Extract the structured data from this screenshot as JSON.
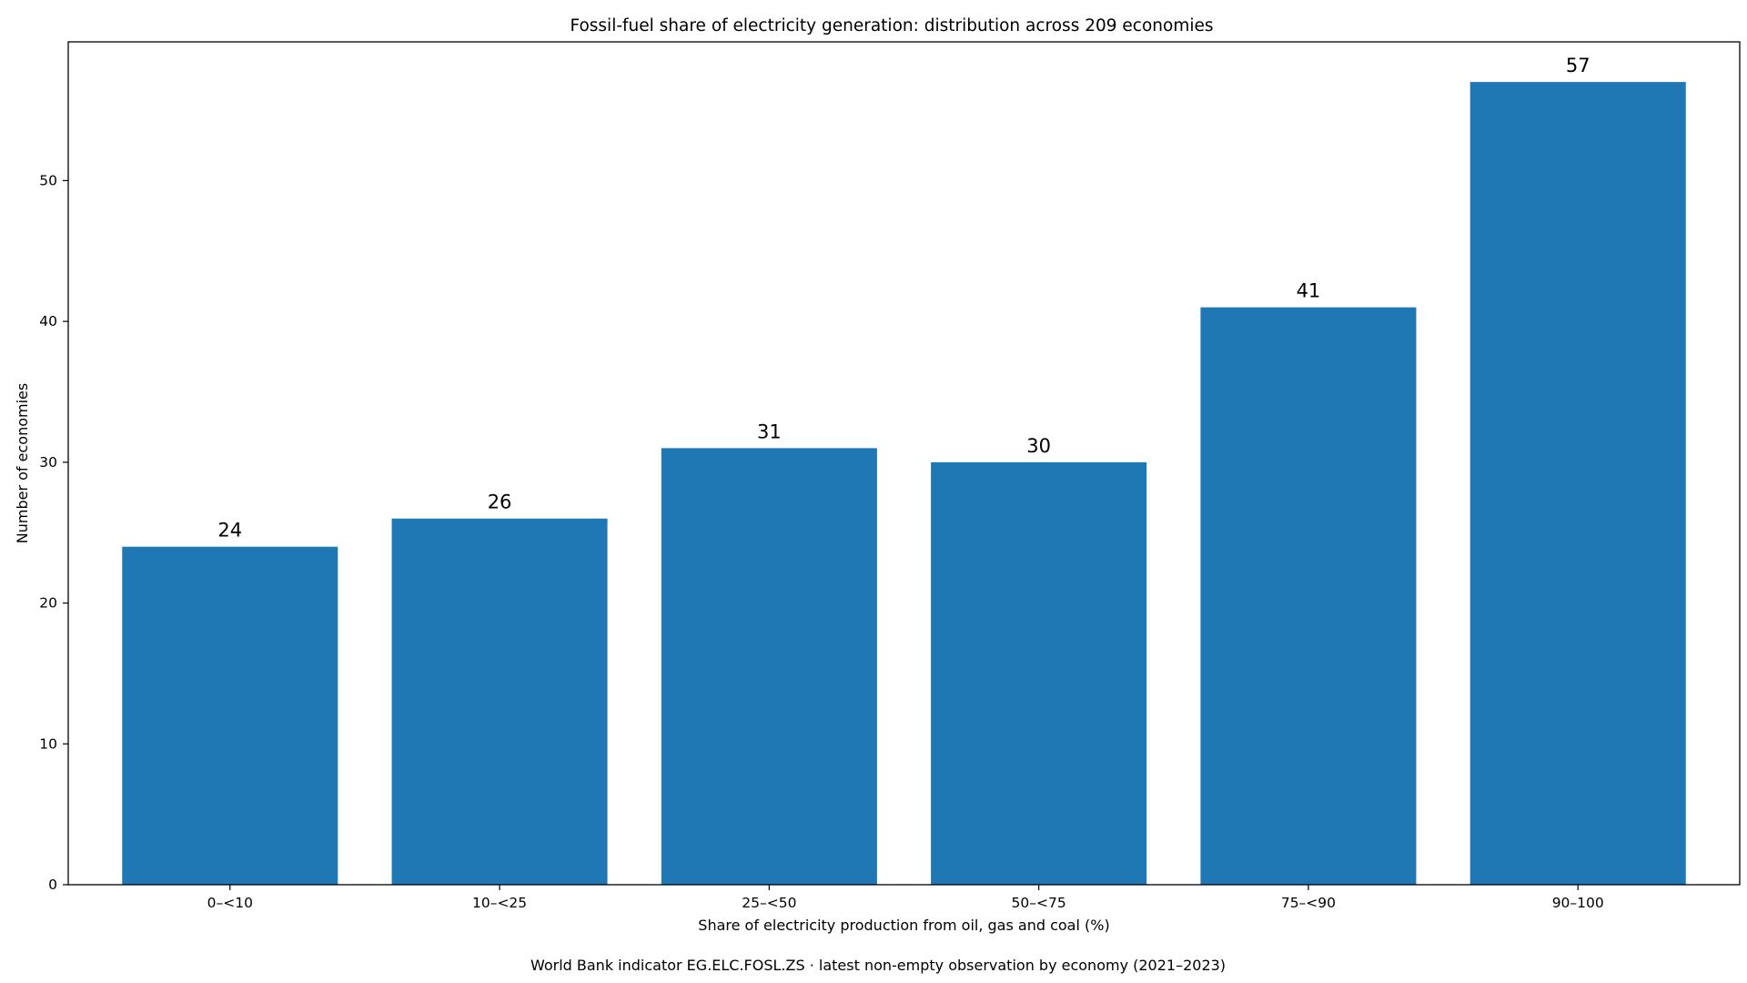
{
  "chart_data": {
    "type": "bar",
    "title": "Fossil-fuel share of electricity generation: distribution across 209 economies",
    "xlabel": "Share of electricity production from oil, gas and coal (%)",
    "ylabel": "Number of economies",
    "categories": [
      "0–<10",
      "10–<25",
      "25–<50",
      "50–<75",
      "75–<90",
      "90–100"
    ],
    "values": [
      24,
      26,
      31,
      30,
      41,
      57
    ],
    "ylim": [
      0,
      59.85
    ],
    "yticks": [
      0,
      10,
      20,
      30,
      40,
      50
    ],
    "bar_color": "#1f77b4",
    "grid": false,
    "legend": "none",
    "footnote": "World Bank indicator EG.ELC.FOSL.ZS · latest non-empty observation by economy (2021–2023)"
  }
}
